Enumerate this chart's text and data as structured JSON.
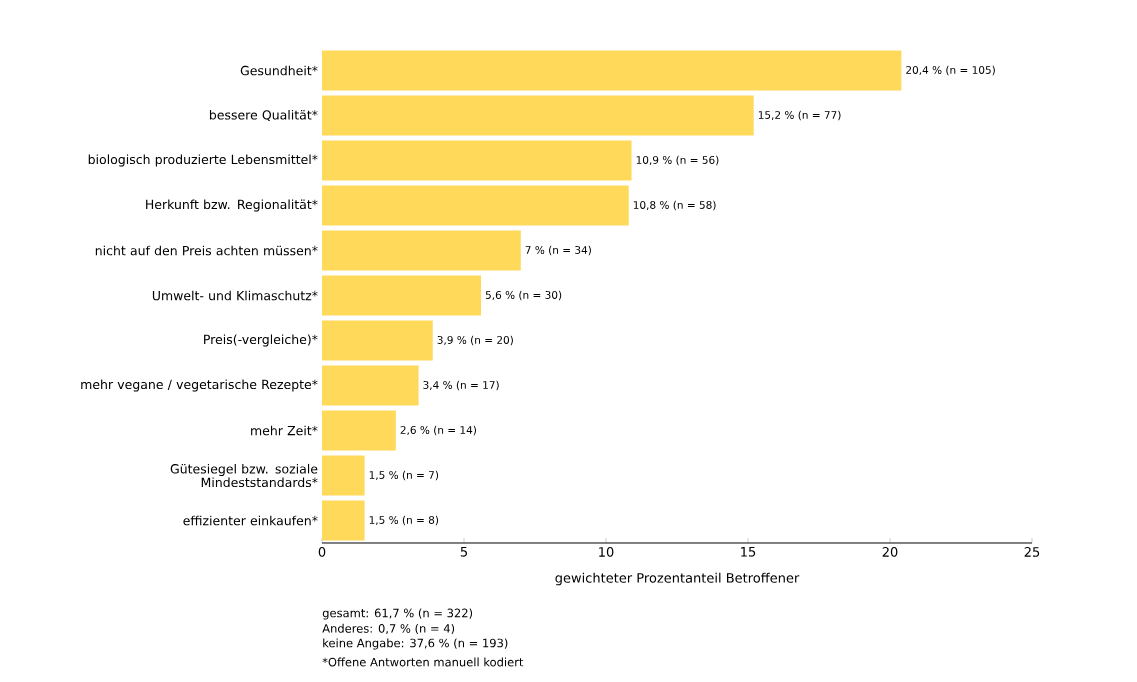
{
  "chart_data": {
    "type": "bar",
    "orientation": "horizontal",
    "color": "#ffd95a",
    "categories": [
      "Gesundheit*",
      "bessere Qualität*",
      "biologisch produzierte Lebensmittel*",
      "Herkunft bzw. Regionalität*",
      "nicht auf den Preis achten müssen*",
      "Umwelt- und Klimaschutz*",
      "Preis(-vergleiche)*",
      "mehr vegane / vegetarische Rezepte*",
      "mehr Zeit*",
      "Gütesiegel bzw. soziale Mindeststandards*",
      "effizienter einkaufen*"
    ],
    "values": [
      20.4,
      15.2,
      10.9,
      10.8,
      7,
      5.6,
      3.9,
      3.4,
      2.6,
      1.5,
      1.5
    ],
    "value_labels": [
      "20,4 % (n = 105)",
      "15,2 % (n = 77)",
      "10,9 % (n = 56)",
      "10,8 % (n = 58)",
      "7 % (n = 34)",
      "5,6 % (n = 30)",
      "3,9 % (n = 20)",
      "3,4 % (n = 17)",
      "2,6 % (n = 14)",
      "1,5 % (n = 7)",
      "1,5 % (n = 8)"
    ],
    "xlim": [
      0,
      25
    ],
    "xticks": [
      0,
      5,
      10,
      15,
      20,
      25
    ],
    "xlabel": "gewichteter Prozentanteil Betroffener",
    "annotations": [
      "gesamt: 61,7 % (n = 322)",
      "Anderes: 0,7 % (n = 4)",
      "keine Angabe: 37,6 % (n = 193)",
      "*Offene Antworten manuell kodiert"
    ]
  }
}
